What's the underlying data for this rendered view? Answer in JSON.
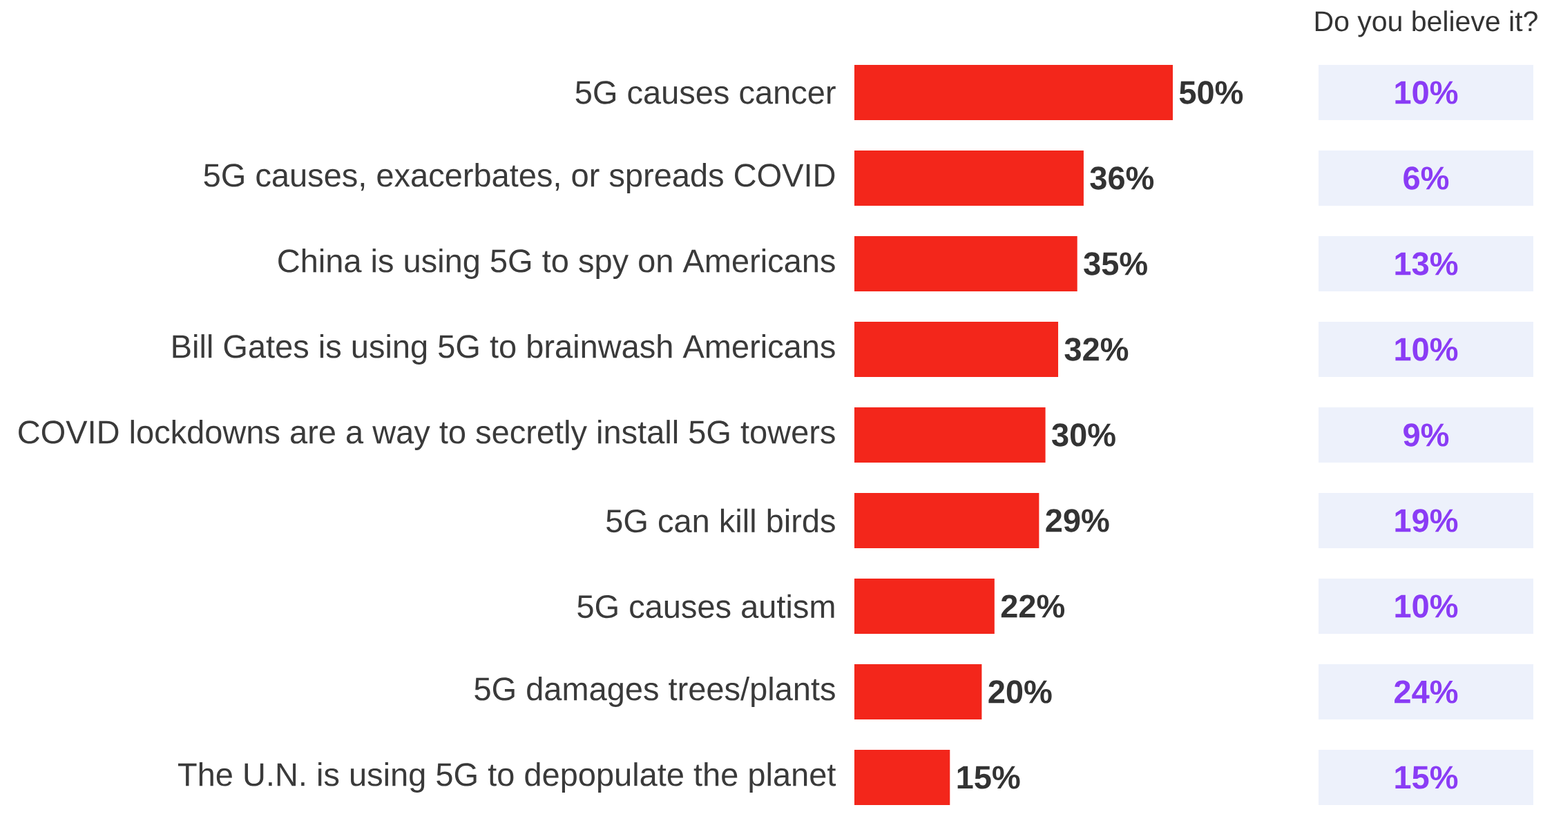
{
  "chart_data": [
    {
      "type": "bar",
      "orientation": "horizontal",
      "categories": [
        "5G causes cancer",
        "5G causes, exacerbates, or spreads COVID",
        "China is using 5G to spy on Americans",
        "Bill Gates is using 5G to brainwash Americans",
        "COVID lockdowns are a way to secretly install 5G towers",
        "5G can kill birds",
        "5G causes autism",
        "5G damages trees/plants",
        "The U.N. is using 5G to depopulate the planet"
      ],
      "values": [
        50,
        36,
        35,
        32,
        30,
        29,
        22,
        20,
        15
      ],
      "value_labels": [
        "50%",
        "36%",
        "35%",
        "32%",
        "30%",
        "29%",
        "22%",
        "20%",
        "15%"
      ],
      "color": "#f3261b"
    },
    {
      "type": "other",
      "title": "Do you believe it?",
      "values": [
        10,
        6,
        13,
        10,
        9,
        19,
        10,
        24,
        15
      ],
      "value_labels": [
        "10%",
        "6%",
        "13%",
        "10%",
        "9%",
        "19%",
        "10%",
        "24%",
        "15%"
      ],
      "color": "#edf1fb"
    }
  ]
}
